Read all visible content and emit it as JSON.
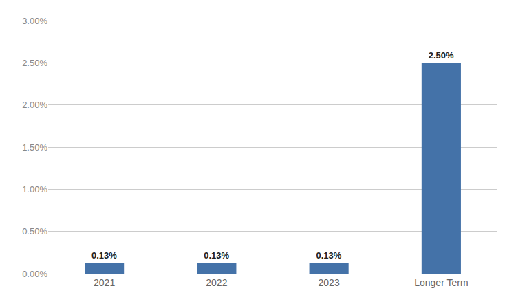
{
  "chart_data": {
    "type": "bar",
    "categories": [
      "2021",
      "2022",
      "2023",
      "Longer Term"
    ],
    "values": [
      0.13,
      0.13,
      0.13,
      2.5
    ],
    "value_labels": [
      "0.13%",
      "0.13%",
      "0.13%",
      "2.50%"
    ],
    "data_labels": true,
    "color": "#4472A8",
    "ylim": [
      0.0,
      3.0
    ],
    "yticks": [
      {
        "value": 0.0,
        "label": "0.00%"
      },
      {
        "value": 0.5,
        "label": "0.50%"
      },
      {
        "value": 1.0,
        "label": "1.00%"
      },
      {
        "value": 1.5,
        "label": "1.50%"
      },
      {
        "value": 2.0,
        "label": "2.00%"
      },
      {
        "value": 2.5,
        "label": "2.50%"
      },
      {
        "value": 3.0,
        "label": "3.00%"
      }
    ],
    "grid": true
  }
}
